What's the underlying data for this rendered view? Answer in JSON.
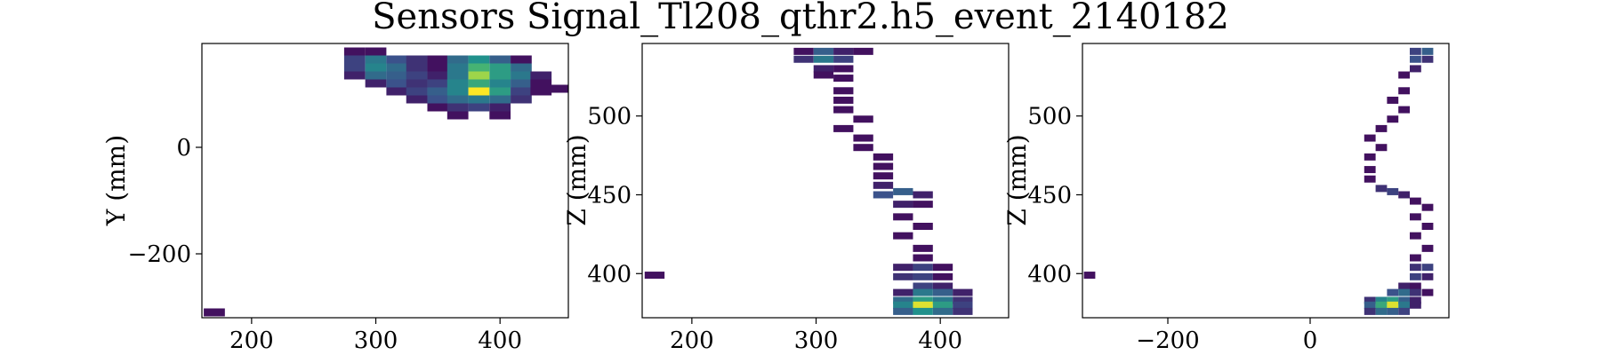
{
  "chart_data": [
    {
      "type": "heatmap",
      "title": "Sensors Signal_Tl208_qthr2.h5_event_2140182",
      "xlabel": "",
      "ylabel": "Y (mm)",
      "xlim": [
        160,
        455
      ],
      "ylim": [
        -320,
        195
      ],
      "xticks": [
        200,
        300,
        400
      ],
      "yticks": [
        0,
        -200
      ],
      "ytick_labels": [
        "0",
        "−200"
      ],
      "grid": false,
      "colormap": [
        "#440154",
        "#3b528b",
        "#21918c",
        "#5ec962",
        "#fde725"
      ],
      "cells": [
        [
          283,
          180,
          0.05
        ],
        [
          300,
          180,
          0.05
        ],
        [
          283,
          165,
          0.2
        ],
        [
          300,
          165,
          0.4
        ],
        [
          317,
          165,
          0.25
        ],
        [
          333,
          165,
          0.15
        ],
        [
          350,
          165,
          0.05
        ],
        [
          366,
          165,
          0.35
        ],
        [
          383,
          165,
          0.5
        ],
        [
          400,
          165,
          0.3
        ],
        [
          417,
          165,
          0.05
        ],
        [
          283,
          150,
          0.2
        ],
        [
          300,
          150,
          0.45
        ],
        [
          317,
          150,
          0.35
        ],
        [
          333,
          150,
          0.15
        ],
        [
          350,
          150,
          0.05
        ],
        [
          366,
          150,
          0.4
        ],
        [
          383,
          150,
          0.65
        ],
        [
          400,
          150,
          0.55
        ],
        [
          417,
          150,
          0.35
        ],
        [
          283,
          135,
          0.1
        ],
        [
          300,
          135,
          0.35
        ],
        [
          317,
          135,
          0.3
        ],
        [
          333,
          135,
          0.2
        ],
        [
          350,
          135,
          0.1
        ],
        [
          366,
          135,
          0.4
        ],
        [
          383,
          135,
          0.85
        ],
        [
          400,
          135,
          0.55
        ],
        [
          417,
          135,
          0.4
        ],
        [
          433,
          135,
          0.1
        ],
        [
          300,
          120,
          0.1
        ],
        [
          317,
          120,
          0.25
        ],
        [
          333,
          120,
          0.15
        ],
        [
          350,
          120,
          0.2
        ],
        [
          366,
          120,
          0.45
        ],
        [
          383,
          120,
          0.6
        ],
        [
          400,
          120,
          0.45
        ],
        [
          417,
          120,
          0.3
        ],
        [
          433,
          120,
          0.05
        ],
        [
          317,
          105,
          0.1
        ],
        [
          333,
          105,
          0.2
        ],
        [
          350,
          105,
          0.3
        ],
        [
          366,
          105,
          0.45
        ],
        [
          383,
          105,
          1.0
        ],
        [
          400,
          105,
          0.55
        ],
        [
          417,
          105,
          0.2
        ],
        [
          433,
          105,
          0.05
        ],
        [
          449,
          110,
          0.05
        ],
        [
          333,
          90,
          0.1
        ],
        [
          350,
          90,
          0.25
        ],
        [
          366,
          90,
          0.35
        ],
        [
          383,
          90,
          0.4
        ],
        [
          400,
          90,
          0.35
        ],
        [
          417,
          90,
          0.15
        ],
        [
          350,
          75,
          0.05
        ],
        [
          366,
          75,
          0.15
        ],
        [
          383,
          75,
          0.2
        ],
        [
          400,
          75,
          0.1
        ],
        [
          366,
          60,
          0.05
        ],
        [
          400,
          60,
          0.05
        ],
        [
          170,
          -310,
          0.05
        ]
      ]
    },
    {
      "type": "heatmap",
      "xlabel": "",
      "ylabel": "Z (mm)",
      "xlim": [
        160,
        455
      ],
      "ylim": [
        372,
        546
      ],
      "xticks": [
        200,
        300,
        400
      ],
      "yticks": [
        500,
        450,
        400
      ],
      "grid": false,
      "colormap": [
        "#440154",
        "#3b528b",
        "#21918c",
        "#5ec962",
        "#fde725"
      ],
      "cells": [
        [
          290,
          541,
          0.05
        ],
        [
          306,
          541,
          0.3
        ],
        [
          322,
          541,
          0.1
        ],
        [
          338,
          541,
          0.05
        ],
        [
          290,
          536,
          0.15
        ],
        [
          306,
          536,
          0.4
        ],
        [
          322,
          536,
          0.2
        ],
        [
          306,
          530,
          0.1
        ],
        [
          322,
          530,
          0.05
        ],
        [
          306,
          526,
          0.05
        ],
        [
          322,
          524,
          0.05
        ],
        [
          322,
          516,
          0.05
        ],
        [
          322,
          510,
          0.05
        ],
        [
          322,
          504,
          0.05
        ],
        [
          338,
          498,
          0.05
        ],
        [
          322,
          492,
          0.05
        ],
        [
          338,
          486,
          0.05
        ],
        [
          338,
          480,
          0.05
        ],
        [
          354,
          474,
          0.05
        ],
        [
          354,
          468,
          0.05
        ],
        [
          354,
          462,
          0.05
        ],
        [
          354,
          456,
          0.1
        ],
        [
          370,
          452,
          0.3
        ],
        [
          354,
          450,
          0.25
        ],
        [
          386,
          450,
          0.1
        ],
        [
          370,
          444,
          0.1
        ],
        [
          386,
          444,
          0.05
        ],
        [
          370,
          436,
          0.05
        ],
        [
          386,
          430,
          0.05
        ],
        [
          370,
          424,
          0.05
        ],
        [
          386,
          416,
          0.05
        ],
        [
          386,
          410,
          0.05
        ],
        [
          370,
          404,
          0.1
        ],
        [
          386,
          404,
          0.2
        ],
        [
          402,
          404,
          0.05
        ],
        [
          370,
          398,
          0.15
        ],
        [
          386,
          398,
          0.2
        ],
        [
          402,
          398,
          0.05
        ],
        [
          386,
          392,
          0.2
        ],
        [
          402,
          392,
          0.1
        ],
        [
          370,
          388,
          0.1
        ],
        [
          386,
          388,
          0.4
        ],
        [
          402,
          388,
          0.3
        ],
        [
          418,
          388,
          0.1
        ],
        [
          370,
          383,
          0.35
        ],
        [
          386,
          383,
          0.55
        ],
        [
          402,
          383,
          0.4
        ],
        [
          418,
          383,
          0.15
        ],
        [
          370,
          380,
          0.45
        ],
        [
          386,
          380,
          0.95
        ],
        [
          402,
          380,
          0.55
        ],
        [
          418,
          380,
          0.2
        ],
        [
          370,
          376,
          0.3
        ],
        [
          386,
          376,
          0.5
        ],
        [
          402,
          376,
          0.35
        ],
        [
          418,
          376,
          0.15
        ],
        [
          170,
          399,
          0.05
        ]
      ]
    },
    {
      "type": "heatmap",
      "xlabel": "",
      "ylabel": "Z (mm)",
      "xlim": [
        -320,
        195
      ],
      "ylim": [
        372,
        546
      ],
      "xticks": [
        -200,
        0
      ],
      "xtick_labels": [
        "−200",
        "0"
      ],
      "yticks": [
        500,
        450,
        400
      ],
      "grid": false,
      "colormap": [
        "#440154",
        "#3b528b",
        "#21918c",
        "#5ec962",
        "#fde725"
      ],
      "cells": [
        [
          148,
          541,
          0.2
        ],
        [
          165,
          541,
          0.3
        ],
        [
          148,
          536,
          0.25
        ],
        [
          165,
          536,
          0.15
        ],
        [
          148,
          530,
          0.1
        ],
        [
          132,
          526,
          0.05
        ],
        [
          132,
          516,
          0.05
        ],
        [
          116,
          510,
          0.05
        ],
        [
          132,
          504,
          0.05
        ],
        [
          116,
          498,
          0.05
        ],
        [
          100,
          492,
          0.05
        ],
        [
          84,
          486,
          0.05
        ],
        [
          100,
          480,
          0.05
        ],
        [
          84,
          474,
          0.05
        ],
        [
          84,
          466,
          0.05
        ],
        [
          84,
          460,
          0.05
        ],
        [
          100,
          454,
          0.15
        ],
        [
          116,
          452,
          0.2
        ],
        [
          132,
          450,
          0.1
        ],
        [
          148,
          446,
          0.05
        ],
        [
          165,
          442,
          0.05
        ],
        [
          148,
          436,
          0.05
        ],
        [
          165,
          430,
          0.05
        ],
        [
          148,
          424,
          0.05
        ],
        [
          165,
          416,
          0.05
        ],
        [
          148,
          410,
          0.05
        ],
        [
          148,
          404,
          0.15
        ],
        [
          165,
          404,
          0.2
        ],
        [
          148,
          398,
          0.2
        ],
        [
          165,
          398,
          0.1
        ],
        [
          132,
          392,
          0.1
        ],
        [
          148,
          392,
          0.05
        ],
        [
          116,
          388,
          0.25
        ],
        [
          132,
          388,
          0.35
        ],
        [
          148,
          388,
          0.15
        ],
        [
          165,
          388,
          0.05
        ],
        [
          84,
          383,
          0.15
        ],
        [
          100,
          383,
          0.45
        ],
        [
          116,
          383,
          0.55
        ],
        [
          132,
          383,
          0.3
        ],
        [
          148,
          383,
          0.1
        ],
        [
          84,
          380,
          0.3
        ],
        [
          100,
          380,
          0.6
        ],
        [
          116,
          380,
          0.95
        ],
        [
          132,
          380,
          0.4
        ],
        [
          148,
          380,
          0.1
        ],
        [
          84,
          376,
          0.15
        ],
        [
          100,
          376,
          0.35
        ],
        [
          116,
          376,
          0.3
        ],
        [
          132,
          376,
          0.2
        ],
        [
          -310,
          399,
          0.05
        ]
      ]
    }
  ]
}
